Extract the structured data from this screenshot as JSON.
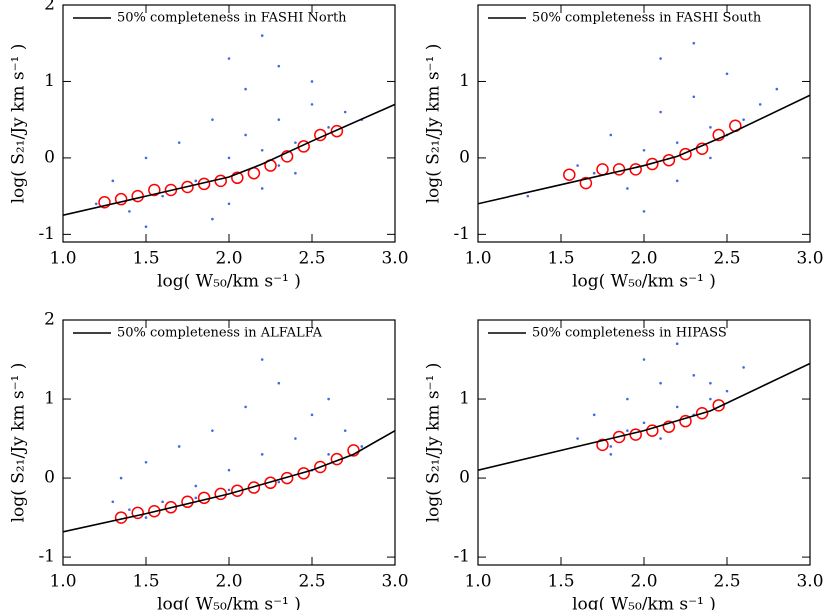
{
  "chart_data": [
    {
      "type": "scatter",
      "xlabel": "log( W₅₀/km s⁻¹ )",
      "ylabel": "log( S₂₁/Jy km s⁻¹ )",
      "xlim": [
        1.0,
        3.0
      ],
      "ylim": [
        -1.1,
        2.0
      ],
      "xticks": [
        {
          "value": 1,
          "label": "1.0"
        },
        1.5,
        {
          "value": 2,
          "label": "2.0"
        },
        2.5,
        {
          "value": 3,
          "label": "3.0"
        }
      ],
      "yticks": [
        -1,
        0,
        1,
        2
      ],
      "legend": "upper left",
      "series": [
        {
          "color": "#4169e1",
          "marker": "dot",
          "x": [
            1.2,
            1.3,
            1.4,
            1.5,
            1.6,
            1.7,
            1.8,
            1.9,
            2.0,
            2.0,
            2.1,
            2.1,
            2.2,
            2.2,
            2.3,
            2.3,
            2.4,
            2.4,
            2.5,
            2.6,
            2.7,
            1.9,
            2.2,
            2.5,
            1.5,
            2.8,
            2.0,
            2.3
          ],
          "y": [
            -0.6,
            -0.3,
            -0.7,
            0.0,
            -0.5,
            0.2,
            -0.3,
            0.5,
            0.0,
            -0.6,
            0.3,
            0.9,
            0.1,
            -0.4,
            0.5,
            1.2,
            0.2,
            -0.2,
            0.7,
            0.4,
            0.6,
            -0.8,
            1.6,
            1.0,
            -0.9,
            0.5,
            1.3,
            -0.1
          ]
        },
        {
          "color": "#ff0000",
          "marker": "circle",
          "x": [
            1.25,
            1.35,
            1.45,
            1.55,
            1.65,
            1.75,
            1.85,
            1.95,
            2.05,
            2.15,
            2.25,
            2.35,
            2.45,
            2.55,
            2.65
          ],
          "y": [
            -0.58,
            -0.54,
            -0.5,
            -0.42,
            -0.42,
            -0.38,
            -0.34,
            -0.3,
            -0.26,
            -0.2,
            -0.1,
            0.02,
            0.15,
            0.3,
            0.35
          ]
        },
        {
          "name": "50% completeness in FASHI North",
          "color": "#000000",
          "marker": "line",
          "x": [
            1.0,
            1.5,
            2.0,
            2.2,
            2.5,
            3.0
          ],
          "y": [
            -0.75,
            -0.5,
            -0.25,
            -0.08,
            0.22,
            0.7
          ]
        }
      ]
    },
    {
      "type": "scatter",
      "xlabel": "log( W₅₀/km s⁻¹ )",
      "ylabel": "log( S₂₁/Jy km s⁻¹ )",
      "xlim": [
        1.0,
        3.0
      ],
      "ylim": [
        -1.1,
        2.0
      ],
      "xticks": [
        {
          "value": 1,
          "label": "1.0"
        },
        1.5,
        {
          "value": 2,
          "label": "2.0"
        },
        2.5,
        {
          "value": 3,
          "label": "3.0"
        }
      ],
      "yticks": [
        -1,
        0,
        1
      ],
      "legend": "upper left",
      "series": [
        {
          "color": "#4169e1",
          "marker": "dot",
          "x": [
            1.3,
            1.6,
            1.8,
            1.9,
            2.0,
            2.1,
            2.2,
            2.2,
            2.3,
            2.4,
            2.4,
            2.5,
            2.6,
            2.7,
            2.0,
            2.3,
            1.7,
            2.5,
            2.1,
            2.8
          ],
          "y": [
            -0.5,
            -0.1,
            0.3,
            -0.4,
            0.1,
            0.6,
            0.2,
            -0.3,
            0.8,
            0.4,
            0.0,
            1.1,
            0.5,
            0.7,
            -0.7,
            1.5,
            -0.2,
            0.3,
            1.3,
            0.9
          ]
        },
        {
          "color": "#ff0000",
          "marker": "circle",
          "x": [
            1.55,
            1.65,
            1.75,
            1.85,
            1.95,
            2.05,
            2.15,
            2.25,
            2.35,
            2.45,
            2.55
          ],
          "y": [
            -0.22,
            -0.33,
            -0.15,
            -0.15,
            -0.15,
            -0.08,
            -0.03,
            0.05,
            0.12,
            0.3,
            0.42
          ]
        },
        {
          "name": "50% completeness in FASHI South",
          "color": "#000000",
          "marker": "line",
          "x": [
            1.0,
            1.5,
            2.0,
            2.2,
            2.5,
            3.0
          ],
          "y": [
            -0.6,
            -0.35,
            -0.1,
            0.02,
            0.3,
            0.82
          ]
        }
      ]
    },
    {
      "type": "scatter",
      "xlabel": "log( W₅₀/km s⁻¹ )",
      "ylabel": "log( S₂₁/Jy km s⁻¹ )",
      "xlim": [
        1.0,
        3.0
      ],
      "ylim": [
        -1.1,
        2.0
      ],
      "xticks": [
        {
          "value": 1,
          "label": "1.0"
        },
        1.5,
        {
          "value": 2,
          "label": "2.0"
        },
        2.5,
        {
          "value": 3,
          "label": "3.0"
        }
      ],
      "yticks": [
        -1,
        0,
        1,
        2
      ],
      "legend": "upper left",
      "series": [
        {
          "color": "#4169e1",
          "marker": "dot",
          "x": [
            1.3,
            1.35,
            1.4,
            1.5,
            1.6,
            1.7,
            1.8,
            1.9,
            2.0,
            2.1,
            2.2,
            2.3,
            2.4,
            2.5,
            2.6,
            2.7,
            2.8,
            2.0,
            2.3,
            2.5,
            1.8,
            2.2,
            2.6,
            1.5
          ],
          "y": [
            -0.3,
            0.0,
            -0.4,
            0.2,
            -0.3,
            0.4,
            -0.1,
            0.6,
            0.1,
            0.9,
            0.3,
            1.2,
            0.5,
            0.8,
            0.3,
            0.6,
            0.4,
            -0.15,
            -0.05,
            0.1,
            -0.25,
            1.5,
            1.0,
            -0.5
          ]
        },
        {
          "color": "#ff0000",
          "marker": "circle",
          "x": [
            1.35,
            1.45,
            1.55,
            1.65,
            1.75,
            1.85,
            1.95,
            2.05,
            2.15,
            2.25,
            2.35,
            2.45,
            2.55,
            2.65,
            2.75
          ],
          "y": [
            -0.5,
            -0.44,
            -0.42,
            -0.37,
            -0.3,
            -0.25,
            -0.2,
            -0.16,
            -0.12,
            -0.06,
            0.0,
            0.06,
            0.14,
            0.24,
            0.35
          ]
        },
        {
          "name": "50% completeness in ALFALFA",
          "color": "#000000",
          "marker": "line",
          "x": [
            1.0,
            1.5,
            2.0,
            2.5,
            2.75,
            3.0
          ],
          "y": [
            -0.68,
            -0.45,
            -0.2,
            0.1,
            0.3,
            0.6
          ]
        }
      ]
    },
    {
      "type": "scatter",
      "xlabel": "log( W₅₀/km s⁻¹ )",
      "ylabel": "log( S₂₁/Jy km s⁻¹ )",
      "xlim": [
        1.0,
        3.0
      ],
      "ylim": [
        -1.1,
        2.0
      ],
      "xticks": [
        {
          "value": 1,
          "label": "1.0"
        },
        1.5,
        {
          "value": 2,
          "label": "2.0"
        },
        2.5,
        {
          "value": 3,
          "label": "3.0"
        }
      ],
      "yticks": [
        -1,
        0,
        1
      ],
      "legend": "upper left",
      "series": [
        {
          "color": "#4169e1",
          "marker": "dot",
          "x": [
            1.6,
            1.7,
            1.8,
            1.9,
            2.0,
            2.1,
            2.2,
            2.3,
            2.4,
            2.5,
            2.6,
            1.9,
            2.1,
            2.3,
            2.0,
            2.2,
            2.4,
            1.8
          ],
          "y": [
            0.5,
            0.8,
            0.4,
            1.0,
            0.7,
            1.2,
            0.9,
            1.3,
            1.0,
            1.1,
            1.4,
            0.6,
            0.5,
            0.8,
            1.5,
            1.7,
            1.2,
            0.3
          ]
        },
        {
          "color": "#ff0000",
          "marker": "circle",
          "x": [
            1.75,
            1.85,
            1.95,
            2.05,
            2.15,
            2.25,
            2.35,
            2.45
          ],
          "y": [
            0.42,
            0.52,
            0.55,
            0.6,
            0.65,
            0.72,
            0.82,
            0.92
          ]
        },
        {
          "name": "50% completeness in HIPASS",
          "color": "#000000",
          "marker": "line",
          "x": [
            1.0,
            1.5,
            2.0,
            2.4,
            2.5,
            3.0
          ],
          "y": [
            0.1,
            0.35,
            0.6,
            0.85,
            0.95,
            1.45
          ]
        }
      ]
    }
  ]
}
